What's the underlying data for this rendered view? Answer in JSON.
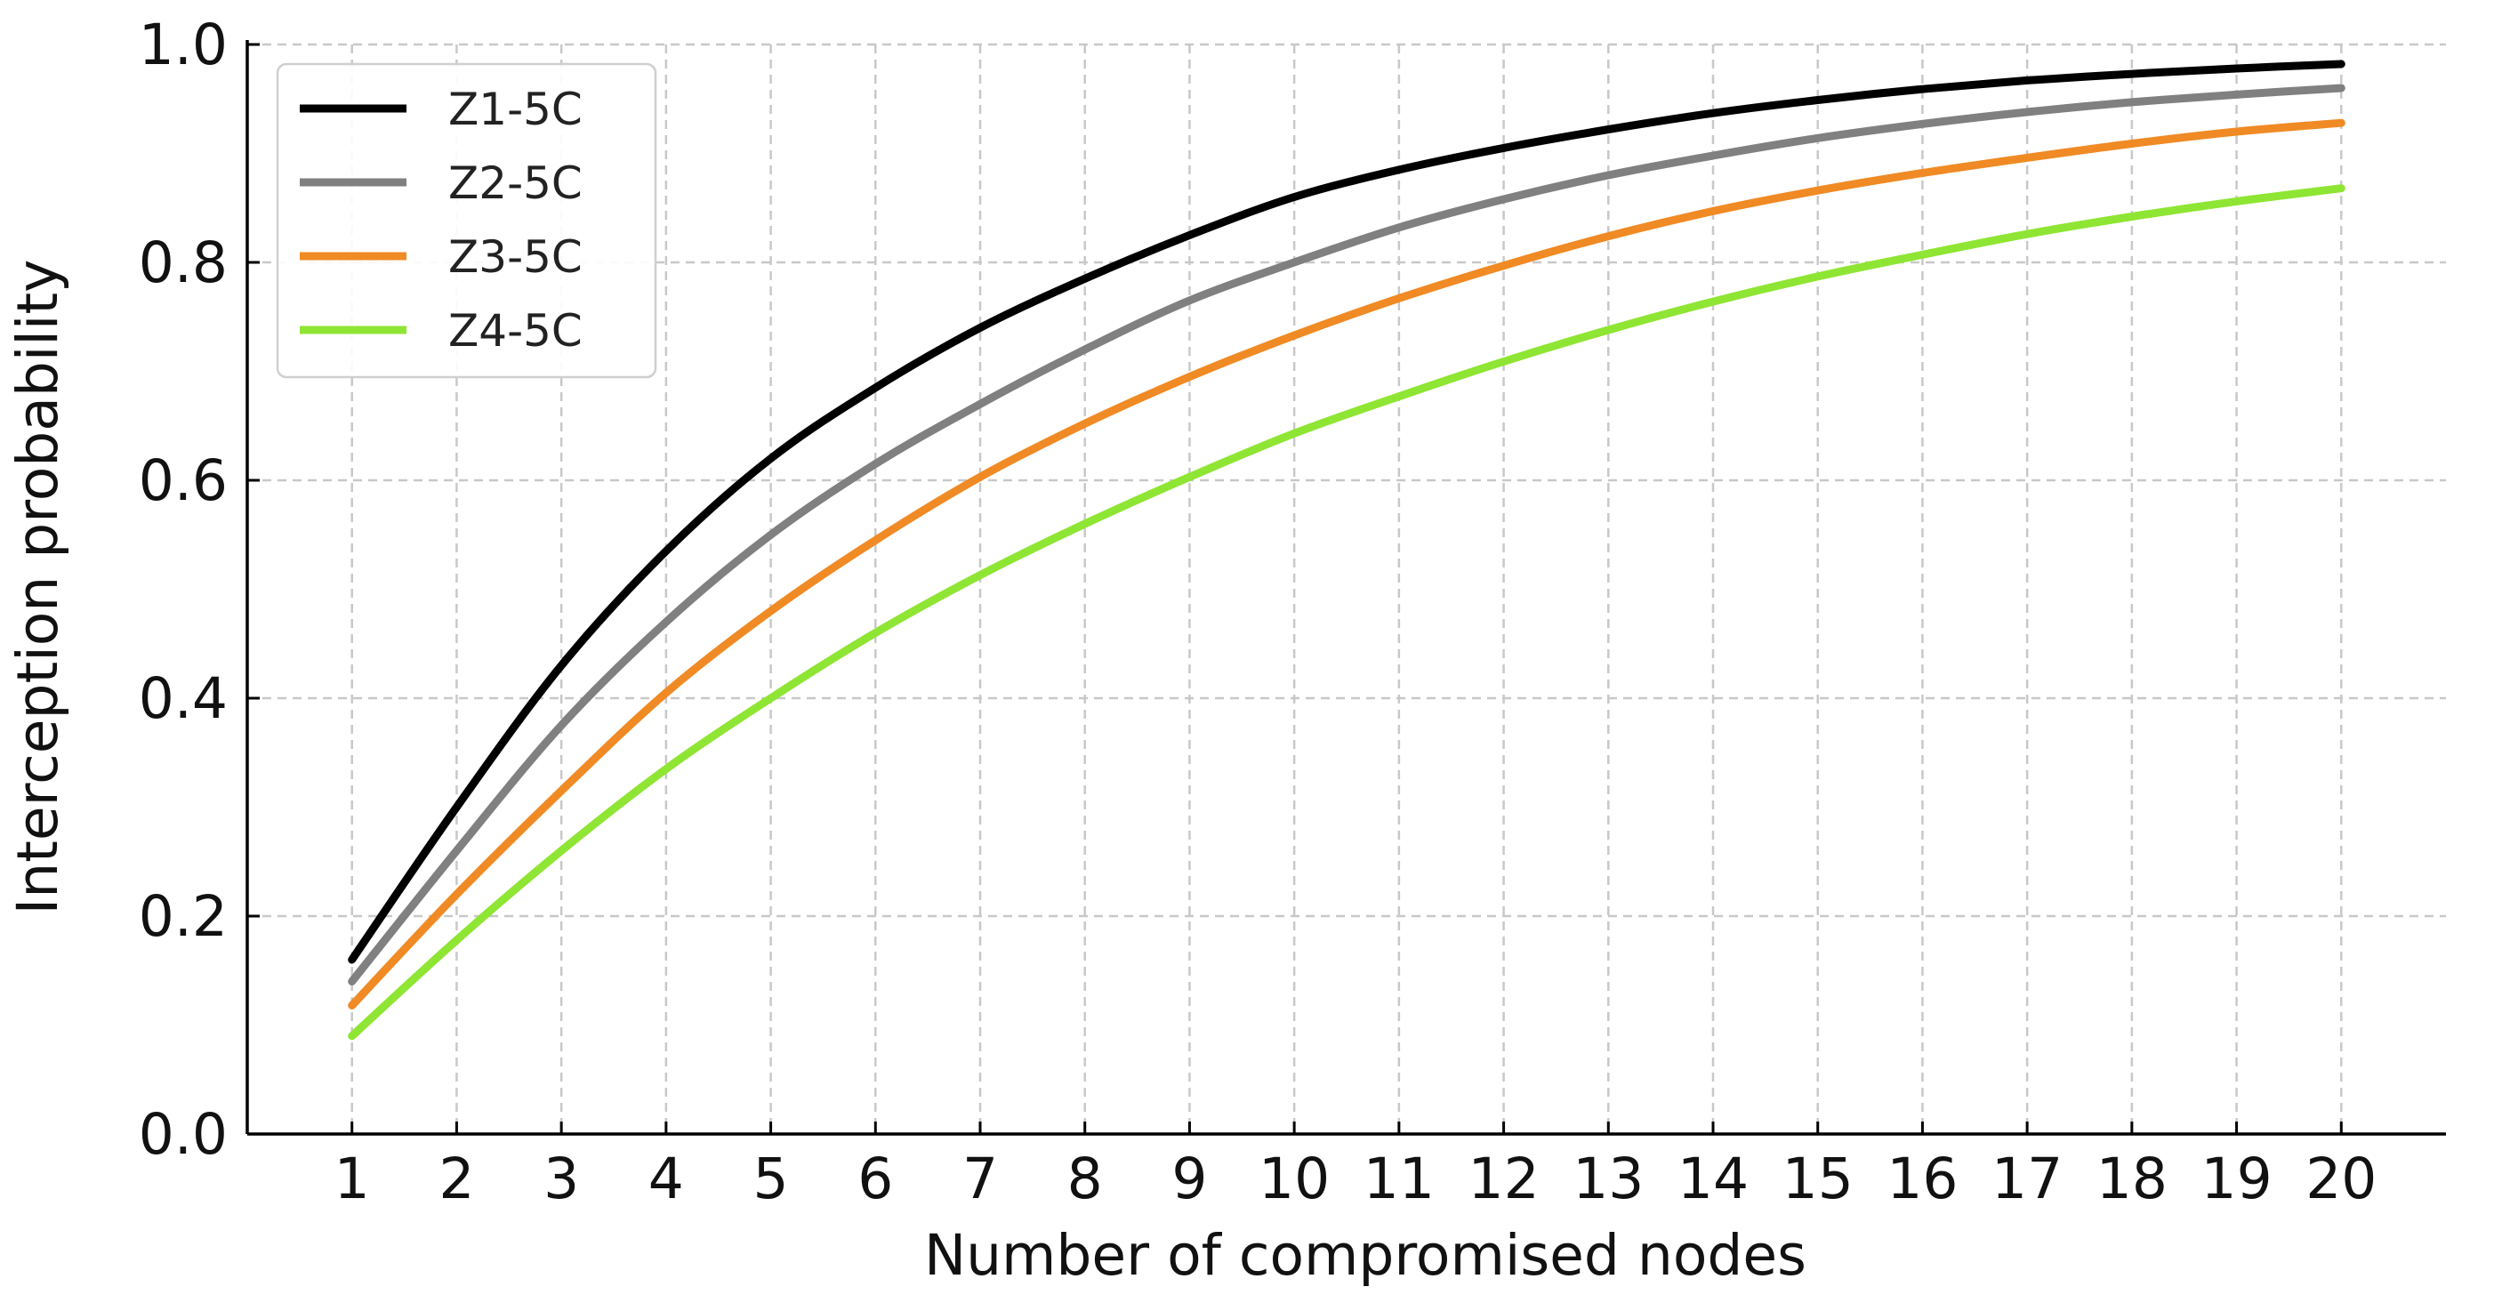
{
  "chart_data": {
    "type": "line",
    "title": "",
    "xlabel": "Number of compromised nodes",
    "ylabel": "Interception probability",
    "xlim": [
      0,
      21
    ],
    "ylim": [
      0.0,
      1.0
    ],
    "grid": true,
    "legend_position": "top-left",
    "x": [
      1,
      2,
      3,
      4,
      5,
      6,
      7,
      8,
      9,
      10,
      11,
      12,
      13,
      14,
      15,
      16,
      17,
      18,
      19,
      20
    ],
    "x_tick_labels": [
      "1",
      "2",
      "3",
      "4",
      "5",
      "6",
      "7",
      "8",
      "9",
      "10",
      "11",
      "12",
      "13",
      "14",
      "15",
      "16",
      "17",
      "18",
      "19",
      "20"
    ],
    "y_tick_labels": [
      "0.0",
      "0.2",
      "0.4",
      "0.6",
      "0.8",
      "1.0"
    ],
    "series": [
      {
        "name": "Z1-5C",
        "color": "#000000",
        "values": [
          0.16,
          0.3,
          0.43,
          0.535,
          0.62,
          0.685,
          0.74,
          0.785,
          0.825,
          0.86,
          0.885,
          0.905,
          0.922,
          0.937,
          0.949,
          0.959,
          0.967,
          0.973,
          0.978,
          0.982
        ]
      },
      {
        "name": "Z2-5C",
        "color": "#808080",
        "values": [
          0.14,
          0.26,
          0.375,
          0.47,
          0.55,
          0.615,
          0.67,
          0.72,
          0.765,
          0.8,
          0.832,
          0.858,
          0.88,
          0.898,
          0.914,
          0.927,
          0.938,
          0.947,
          0.954,
          0.96
        ]
      },
      {
        "name": "Z3-5C",
        "color": "#f08a24",
        "values": [
          0.118,
          0.22,
          0.315,
          0.405,
          0.48,
          0.545,
          0.603,
          0.652,
          0.695,
          0.733,
          0.767,
          0.797,
          0.824,
          0.847,
          0.866,
          0.882,
          0.896,
          0.909,
          0.92,
          0.928
        ]
      },
      {
        "name": "Z4-5C",
        "color": "#8fe533",
        "values": [
          0.09,
          0.178,
          0.26,
          0.335,
          0.4,
          0.46,
          0.513,
          0.56,
          0.603,
          0.643,
          0.677,
          0.709,
          0.738,
          0.764,
          0.787,
          0.807,
          0.826,
          0.842,
          0.856,
          0.868
        ]
      }
    ]
  }
}
